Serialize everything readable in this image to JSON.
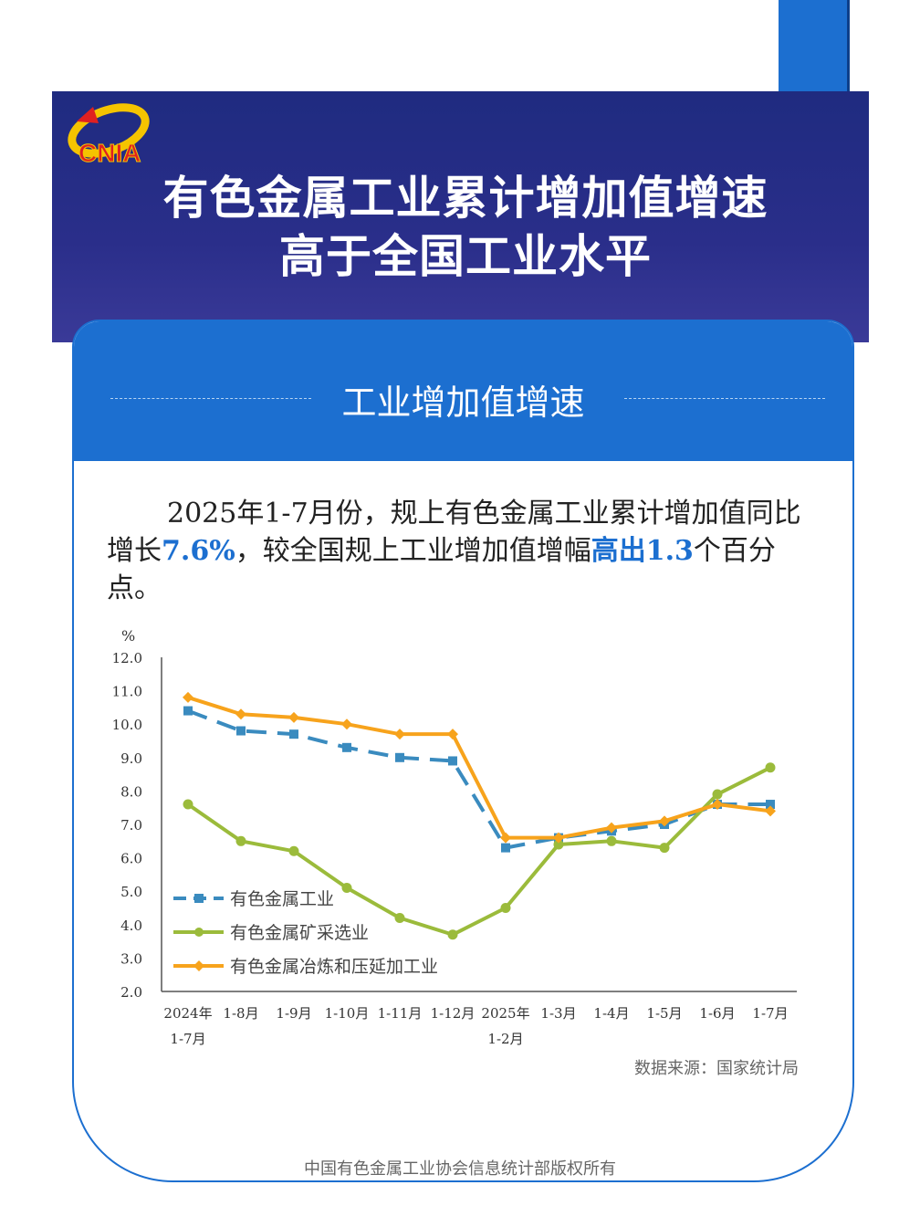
{
  "header": {
    "logo_text": "CNIA",
    "title_line1": "有色金属工业累计增加值增速",
    "title_line2": "高于全国工业水平"
  },
  "section": {
    "title": "工业增加值增速"
  },
  "paragraph": {
    "p1": "2025年1-7月份，规上有色金属工业累计增加值同比增长",
    "v1": "7.6%",
    "p2": "，较全国规上工业增加值增幅",
    "v2": "高出1.3",
    "p3": "个百分点。"
  },
  "colors": {
    "accent": "#1c6fd0",
    "banner": "#232c84",
    "series_blue": "#3a8bbf",
    "series_green": "#9bbb3b",
    "series_orange": "#f7a31c"
  },
  "chart_data": {
    "type": "line",
    "ylabel": "%",
    "ylim": [
      2.0,
      12.0
    ],
    "yticks": [
      "12.0",
      "11.0",
      "10.0",
      "9.0",
      "8.0",
      "7.0",
      "6.0",
      "5.0",
      "4.0",
      "3.0",
      "2.0"
    ],
    "categories": [
      [
        "2024年",
        "1-7月"
      ],
      [
        "1-8月"
      ],
      [
        "1-9月"
      ],
      [
        "1-10月"
      ],
      [
        "1-11月"
      ],
      [
        "1-12月"
      ],
      [
        "2025年",
        "1-2月"
      ],
      [
        "1-3月"
      ],
      [
        "1-4月"
      ],
      [
        "1-5月"
      ],
      [
        "1-6月"
      ],
      [
        "1-7月"
      ]
    ],
    "legend_position": "bottom-left",
    "series": [
      {
        "name": "有色金属工业",
        "color": "#3a8bbf",
        "style": "dashed",
        "values": [
          10.4,
          9.8,
          9.7,
          9.3,
          9.0,
          8.9,
          6.3,
          6.6,
          6.8,
          7.0,
          7.6,
          7.6
        ]
      },
      {
        "name": "有色金属矿采选业",
        "color": "#9bbb3b",
        "style": "solid",
        "values": [
          7.6,
          6.5,
          6.2,
          5.1,
          4.2,
          3.7,
          4.5,
          6.4,
          6.5,
          6.3,
          7.9,
          8.7
        ]
      },
      {
        "name": "有色金属冶炼和压延加工业",
        "color": "#f7a31c",
        "style": "solid",
        "values": [
          10.8,
          10.3,
          10.2,
          10.0,
          9.7,
          9.7,
          6.6,
          6.6,
          6.9,
          7.1,
          7.6,
          7.4
        ]
      }
    ]
  },
  "source": "数据来源：国家统计局",
  "footer": "中国有色金属工业协会信息统计部版权所有"
}
